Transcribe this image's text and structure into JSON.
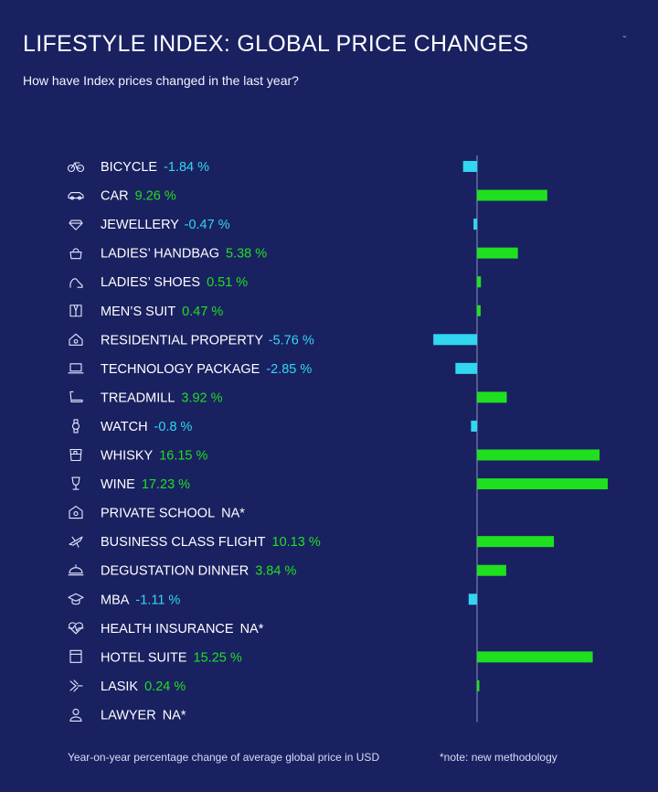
{
  "title": "LIFESTYLE INDEX: GLOBAL PRICE CHANGES",
  "subtitle": "How have Index prices changed in the last year?",
  "footnote": "Year-on-year percentage change of average global price in USD",
  "note": "*note: new methodology",
  "colors": {
    "background": "#1a2161",
    "positive": "#1fe01f",
    "negative": "#31d7f0",
    "label": "#ffffff",
    "axis": "#8a92c4"
  },
  "chart_data": {
    "type": "bar",
    "orientation": "horizontal",
    "xlim": [
      -5.76,
      17.23
    ],
    "categories": [
      {
        "name": "BICYCLE",
        "icon": "bicycle-icon",
        "value": -1.84,
        "value_label": "-1.84 %"
      },
      {
        "name": "CAR",
        "icon": "car-icon",
        "value": 9.26,
        "value_label": "9.26 %"
      },
      {
        "name": "JEWELLERY",
        "icon": "diamond-icon",
        "value": -0.47,
        "value_label": "-0.47 %"
      },
      {
        "name": "LADIES’ HANDBAG",
        "icon": "handbag-icon",
        "value": 5.38,
        "value_label": "5.38 %"
      },
      {
        "name": "LADIES’ SHOES",
        "icon": "high-heel-icon",
        "value": 0.51,
        "value_label": "0.51 %"
      },
      {
        "name": "MEN’S SUIT",
        "icon": "suit-icon",
        "value": 0.47,
        "value_label": "0.47 %"
      },
      {
        "name": "RESIDENTIAL PROPERTY",
        "icon": "house-icon",
        "value": -5.76,
        "value_label": "-5.76 %"
      },
      {
        "name": "TECHNOLOGY PACKAGE",
        "icon": "laptop-icon",
        "value": -2.85,
        "value_label": "-2.85 %"
      },
      {
        "name": "TREADMILL",
        "icon": "treadmill-icon",
        "value": 3.92,
        "value_label": "3.92 %"
      },
      {
        "name": "WATCH",
        "icon": "watch-icon",
        "value": -0.8,
        "value_label": "-0.8 %"
      },
      {
        "name": "WHISKY",
        "icon": "whisky-glass-icon",
        "value": 16.15,
        "value_label": "16.15 %"
      },
      {
        "name": "WINE",
        "icon": "wine-glass-icon",
        "value": 17.23,
        "value_label": "17.23 %"
      },
      {
        "name": "PRIVATE SCHOOL",
        "icon": "school-icon",
        "value": null,
        "value_label": "NA*"
      },
      {
        "name": "BUSINESS CLASS FLIGHT",
        "icon": "airplane-icon",
        "value": 10.13,
        "value_label": "10.13 %"
      },
      {
        "name": "DEGUSTATION DINNER",
        "icon": "cloche-icon",
        "value": 3.84,
        "value_label": "3.84 %"
      },
      {
        "name": "MBA",
        "icon": "graduation-cap-icon",
        "value": -1.11,
        "value_label": "-1.11 %"
      },
      {
        "name": "HEALTH INSURANCE",
        "icon": "heartbeat-icon",
        "value": null,
        "value_label": "NA*"
      },
      {
        "name": "HOTEL SUITE",
        "icon": "hotel-icon",
        "value": 15.25,
        "value_label": "15.25 %"
      },
      {
        "name": "LASIK",
        "icon": "laser-eye-icon",
        "value": 0.24,
        "value_label": "0.24 %"
      },
      {
        "name": "LAWYER",
        "icon": "lawyer-icon",
        "value": null,
        "value_label": "NA*"
      }
    ]
  }
}
